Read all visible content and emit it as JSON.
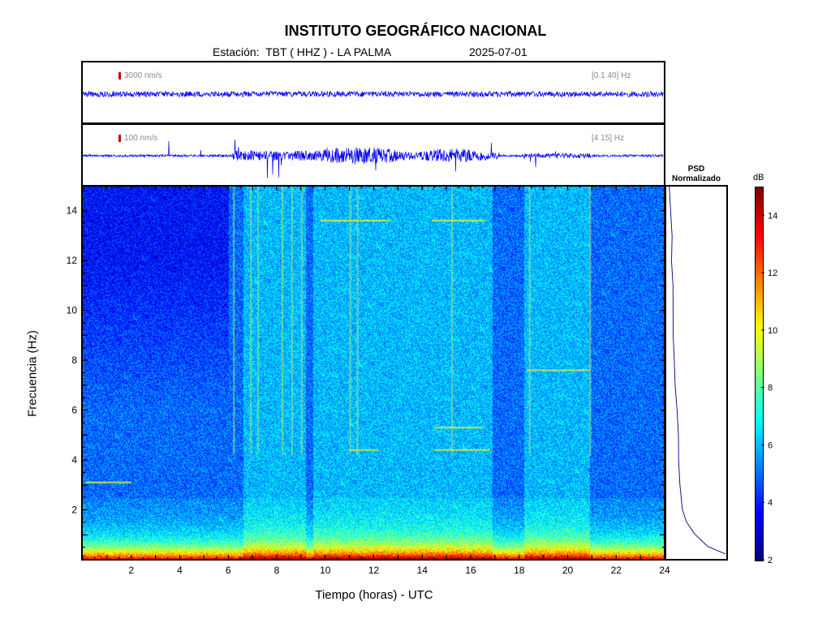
{
  "header": {
    "title": "INSTITUTO GEOGRÁFICO NACIONAL",
    "station_label": "Estación:  TBT ( HHZ ) - LA PALMA",
    "date": "2025-07-01"
  },
  "trace_top": {
    "scale": "3000 nm/s",
    "band": "[0.1 40] Hz"
  },
  "trace_bottom": {
    "scale": "100 nm/s",
    "band": "[4 15] Hz"
  },
  "psd": {
    "title_line1": "PSD",
    "title_line2": "Normalizado"
  },
  "colorbar": {
    "unit": "dB",
    "ticks": [
      2,
      4,
      6,
      8,
      10,
      12,
      14
    ],
    "range": [
      2,
      15
    ]
  },
  "colors": {
    "trace": "#0000ff",
    "scale_bar": "#cc0000",
    "psd_line": "#000080"
  },
  "chart_data": {
    "type": "heatmap",
    "title": "INSTITUTO GEOGRÁFICO NACIONAL",
    "xlabel": "Tiempo (horas) - UTC",
    "ylabel": "Frecuencia  (Hz)",
    "xlim": [
      0,
      24
    ],
    "ylim": [
      0,
      15
    ],
    "xticks": [
      2,
      4,
      6,
      8,
      10,
      12,
      14,
      16,
      18,
      20,
      22,
      24
    ],
    "yticks": [
      2,
      4,
      6,
      8,
      10,
      12,
      14
    ],
    "colormap": "jet",
    "color_range_db": [
      2,
      15
    ],
    "grid": false,
    "activity_periods_hours": [
      [
        6.6,
        9.2
      ],
      [
        9.5,
        16.9
      ],
      [
        18.2,
        20.9
      ]
    ],
    "spectral_lines": [
      {
        "freq_hz": 4.4,
        "start_h": 11.0,
        "end_h": 12.2
      },
      {
        "freq_hz": 4.4,
        "start_h": 14.5,
        "end_h": 16.8
      },
      {
        "freq_hz": 5.3,
        "start_h": 14.5,
        "end_h": 16.5
      },
      {
        "freq_hz": 7.6,
        "start_h": 18.3,
        "end_h": 20.9
      },
      {
        "freq_hz": 13.6,
        "start_h": 9.8,
        "end_h": 12.7
      },
      {
        "freq_hz": 13.6,
        "start_h": 14.4,
        "end_h": 16.6
      },
      {
        "freq_hz": 3.1,
        "start_h": 0.1,
        "end_h": 2.0
      }
    ],
    "psd_normalized": {
      "freq_hz": [
        0.2,
        0.5,
        1,
        1.5,
        2,
        3,
        4,
        5,
        6,
        7,
        8,
        9,
        10,
        11,
        12,
        13,
        14,
        15
      ],
      "level": [
        1.0,
        0.7,
        0.45,
        0.3,
        0.24,
        0.2,
        0.17,
        0.15,
        0.13,
        0.11,
        0.09,
        0.08,
        0.07,
        0.06,
        0.05,
        0.04,
        0.02,
        0.01
      ]
    }
  }
}
